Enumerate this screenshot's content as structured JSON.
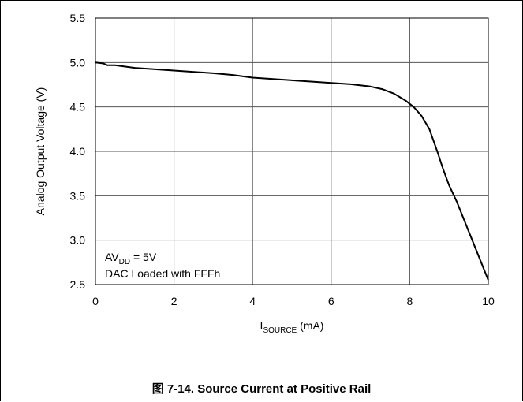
{
  "chart_data": {
    "type": "line",
    "ylabel": "Analog Output Voltage (V)",
    "xlabel": {
      "main": "I",
      "sub": "SOURCE",
      "unit": " (mA)"
    },
    "xlim": [
      0,
      10
    ],
    "ylim": [
      2.5,
      5.5
    ],
    "x_ticks": [
      0,
      2,
      4,
      6,
      8,
      10
    ],
    "y_ticks": [
      2.5,
      3.0,
      3.5,
      4.0,
      4.5,
      5.0,
      5.5
    ],
    "x_tick_labels": [
      "0",
      "2",
      "4",
      "6",
      "8",
      "10"
    ],
    "y_tick_labels": [
      "2.5",
      "3.0",
      "3.5",
      "4.0",
      "4.5",
      "5.0",
      "5.5"
    ],
    "grid": true,
    "annotation": {
      "line1": {
        "main": "AV",
        "sub": "DD",
        "rest": " = 5V"
      },
      "line2": "DAC Loaded with FFFh"
    },
    "series": [
      {
        "color": "#000000",
        "x": [
          0,
          0.2,
          0.3,
          0.5,
          1.0,
          2.0,
          3.0,
          3.5,
          4.0,
          5.0,
          6.0,
          6.5,
          7.0,
          7.3,
          7.6,
          7.9,
          8.1,
          8.3,
          8.5,
          8.7,
          8.85,
          9.0,
          9.2,
          9.5,
          10.0
        ],
        "y": [
          5.0,
          4.99,
          4.97,
          4.97,
          4.94,
          4.91,
          4.88,
          4.86,
          4.83,
          4.8,
          4.77,
          4.755,
          4.73,
          4.7,
          4.65,
          4.57,
          4.5,
          4.4,
          4.25,
          4.0,
          3.8,
          3.62,
          3.43,
          3.1,
          2.55
        ]
      }
    ]
  },
  "caption": "图 7-14. Source Current at Positive Rail"
}
